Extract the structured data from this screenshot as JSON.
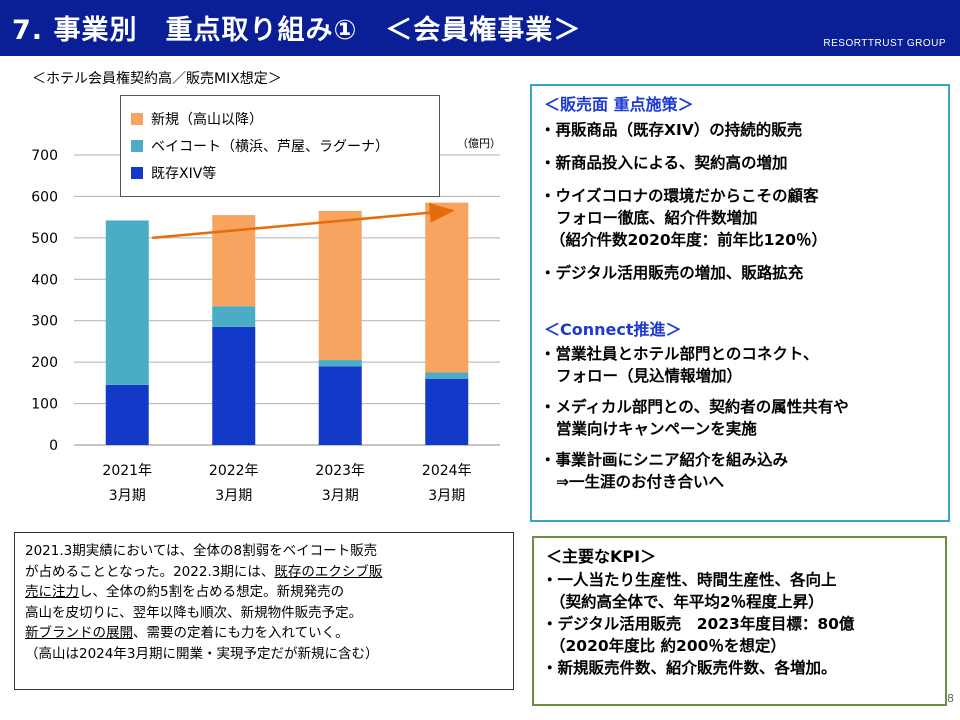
{
  "header": {
    "title": "7. 事業別　重点取り組み①　＜会員権事業＞",
    "brand": "RESORTTRUST GROUP"
  },
  "chart_title": "＜ホテル会員権契約高／販売MIX想定＞",
  "chart_data": {
    "type": "bar",
    "stacked": true,
    "categories": [
      [
        "2021年",
        "3月期"
      ],
      [
        "2022年",
        "3月期"
      ],
      [
        "2023年",
        "3月期"
      ],
      [
        "2024年",
        "3月期"
      ]
    ],
    "series": [
      {
        "name": "既存XIV等",
        "color": "#1239c8",
        "values": [
          145,
          285,
          190,
          160
        ]
      },
      {
        "name": "ベイコート（横浜、芦屋、ラグーナ）",
        "color": "#4bacc6",
        "values": [
          397,
          50,
          15,
          15
        ]
      },
      {
        "name": "新規（高山以降）",
        "color": "#f7a461",
        "values": [
          0,
          220,
          360,
          410
        ]
      }
    ],
    "ylim": [
      0,
      700
    ],
    "yticks": [
      0,
      100,
      200,
      300,
      400,
      500,
      600,
      700
    ],
    "unit": "（億円）",
    "trend_arrow": {
      "from": 500,
      "to": 565,
      "color": "#e46c0a"
    },
    "grid": true,
    "legend_position": "top"
  },
  "sales": {
    "title": "＜販売面 重点施策＞",
    "items": [
      [
        "・再販商品（既存XIV）の持続的販売"
      ],
      [
        "・新商品投入による、契約高の増加"
      ],
      [
        "・ウイズコロナの環境だからこその顧客",
        "フォロー徹底、紹介件数増加",
        "（紹介件数2020年度：前年比120％）"
      ],
      [
        "・デジタル活用販売の増加、販路拡充"
      ]
    ]
  },
  "connect": {
    "title": "＜Connect推進＞",
    "items": [
      [
        "・営業社員とホテル部門とのコネクト、",
        "フォロー（見込情報増加）"
      ],
      [
        "・メディカル部門との、契約者の属性共有や",
        "営業向けキャンペーンを実施"
      ],
      [
        "・事業計画にシニア紹介を組み込み",
        "⇒一生涯のお付き合いへ"
      ]
    ]
  },
  "kpi": {
    "title": "＜主要なKPI＞",
    "lines": [
      "・一人当たり生産性、時間生産性、各向上",
      "（契約高全体で、年平均2％程度上昇）",
      "・デジタル活用販売　2023年度目標：80億",
      "（2020年度比 約200％を想定）",
      "・新規販売件数、紹介販売件数、各増加。"
    ]
  },
  "description": {
    "l1": "2021.3期実績においては、全体の8割弱をベイコート販売",
    "l2a": "が占めることとなった。2022.3期には、",
    "l2u": "既存のエクシブ販",
    "l3u": "売に注力",
    "l3b": "し、全体の約5割を占める想定。新規発売の",
    "l4": "高山を皮切りに、翌年以降も順次、新規物件販売予定。",
    "l5u": "新ブランドの展開",
    "l5b": "、需要の定着にも力を入れていく。",
    "l6": "（高山は2024年3月期に開業・実現予定だが新規に含む）"
  },
  "page_number": "8"
}
